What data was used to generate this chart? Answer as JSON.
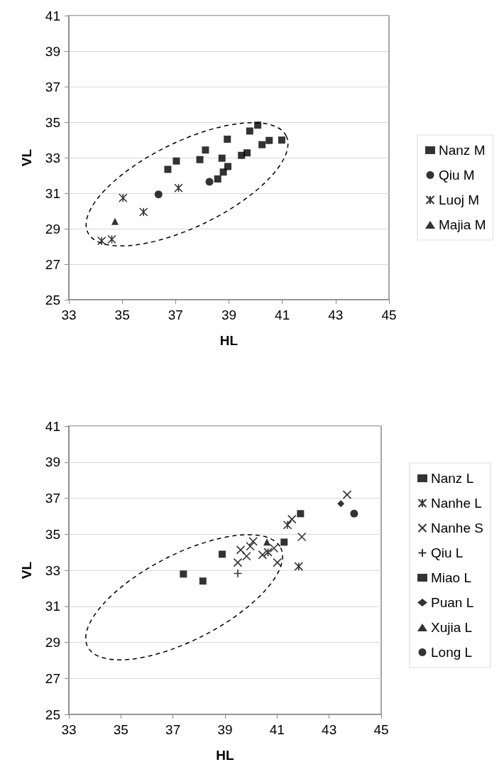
{
  "chart_data": [
    {
      "type": "scatter",
      "xlabel": "HL",
      "ylabel": "VL",
      "xlim": [
        33,
        45
      ],
      "ylim": [
        25,
        41
      ],
      "xticks": [
        33,
        35,
        37,
        39,
        41,
        43,
        45
      ],
      "yticks": [
        25,
        27,
        29,
        31,
        33,
        35,
        37,
        39,
        41
      ],
      "grid": "y",
      "legend": "right",
      "series": [
        {
          "name": "Nanz M",
          "color": "#000000",
          "marker": "square",
          "x": [
            36.71,
            37.03,
            37.91,
            38.12,
            38.94,
            38.74,
            38.96,
            38.79,
            38.58,
            39.47,
            39.68,
            39.78,
            40.08,
            40.24,
            40.51,
            40.98
          ],
          "values": [
            32.34,
            32.81,
            32.89,
            33.43,
            34.04,
            32.97,
            32.5,
            32.19,
            31.8,
            33.13,
            33.27,
            34.5,
            34.83,
            33.73,
            33.97,
            33.99
          ]
        },
        {
          "name": "Qiu M",
          "color": "#000000",
          "marker": "circle",
          "x": [
            36.36,
            38.27
          ],
          "values": [
            30.93,
            31.64
          ]
        },
        {
          "name": "Luoj M",
          "color": "#000000",
          "x": [
            34.23,
            34.61,
            35.03,
            35.8,
            37.11
          ],
          "values": [
            28.31,
            28.4,
            30.73,
            29.94,
            31.29
          ]
        },
        {
          "name": "Majia M",
          "color": "#000000",
          "marker": "triangle",
          "x": [
            34.73
          ],
          "values": [
            29.41
          ]
        }
      ]
    },
    {
      "type": "scatter",
      "xlabel": "HL",
      "ylabel": "VL",
      "xlim": [
        33,
        45
      ],
      "ylim": [
        25,
        41
      ],
      "xticks": [
        33,
        35,
        37,
        39,
        41,
        43,
        45
      ],
      "yticks": [
        25,
        27,
        29,
        31,
        33,
        35,
        37,
        39,
        41
      ],
      "grid": "y",
      "legend": "right",
      "series": [
        {
          "name": "Nanz L",
          "color": "#000000",
          "marker": "square",
          "x": [
            37.4,
            38.15,
            38.89,
            41.27
          ],
          "values": [
            32.79,
            32.4,
            33.89,
            34.56
          ]
        },
        {
          "name": "Nanhe L",
          "color": "#000000",
          "x": [
            41.4,
            41.83,
            40.65
          ],
          "values": [
            35.51,
            33.21,
            34.0
          ]
        },
        {
          "name": "Nanhe S",
          "color": "#000000",
          "marker": "cross",
          "x": [
            43.69,
            41.57,
            41.95,
            40.08,
            39.97,
            39.6,
            39.83,
            39.49,
            40.44,
            40.88,
            41.01
          ],
          "values": [
            37.19,
            35.83,
            34.85,
            34.6,
            34.33,
            34.13,
            33.78,
            33.43,
            33.85,
            34.22,
            33.43
          ]
        },
        {
          "name": "Qiu L",
          "color": "#000000",
          "marker": "plus",
          "x": [
            39.49
          ],
          "values": [
            32.82
          ]
        },
        {
          "name": "Miao L",
          "color": "#000000",
          "marker": "square",
          "x": [
            41.9
          ],
          "values": [
            36.14
          ]
        },
        {
          "name": "Puan L",
          "color": "#000000",
          "marker": "diamond",
          "x": [
            43.45
          ],
          "values": [
            36.69
          ]
        },
        {
          "name": "Xujia L",
          "color": "#000000",
          "marker": "triangle",
          "x": [
            40.61
          ],
          "values": [
            34.57
          ]
        },
        {
          "name": "Long L",
          "color": "#000000",
          "marker": "circle",
          "x": [
            43.96
          ],
          "values": [
            36.14
          ]
        }
      ]
    }
  ]
}
